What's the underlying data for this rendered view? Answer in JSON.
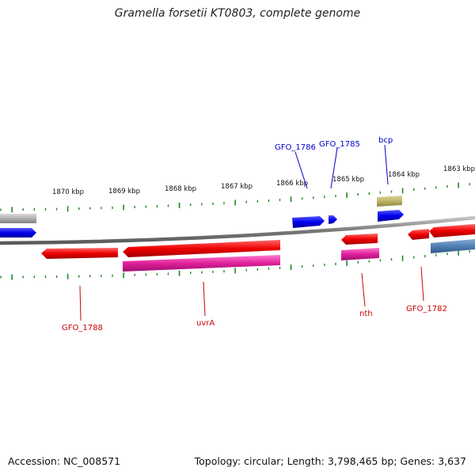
{
  "title": "Gramella forsetii KT0803, complete genome",
  "footer": {
    "accession": "Accession: NC_008571",
    "summary": "Topology: circular; Length: 3,798,465 bp; Genes: 3,637"
  },
  "colors": {
    "background": "#ffffff",
    "backbone": "#8c8c8c",
    "tick": "#1f8a1f",
    "forward_label": "#0000cc",
    "reverse_label": "#cc0000",
    "gene_blue": "#0000ee",
    "gene_red": "#ee0000",
    "gene_magenta": "#e0209a",
    "gene_olive": "#bcb46a",
    "gene_gray": "#b0b0b0",
    "gene_steelblue": "#4f7fb4"
  },
  "scale_labels": [
    "1870 kbp",
    "1869 kbp",
    "1868 kbp",
    "1867 kbp",
    "1866 kbp",
    "1865 kbp",
    "1864 kbp",
    "1863 kbp"
  ],
  "forward_labels": [
    "GFO_1786",
    "GFO_1785",
    "bcp"
  ],
  "reverse_labels": [
    "GFO_1788",
    "uvrA",
    "nth",
    "GFO_1782"
  ]
}
